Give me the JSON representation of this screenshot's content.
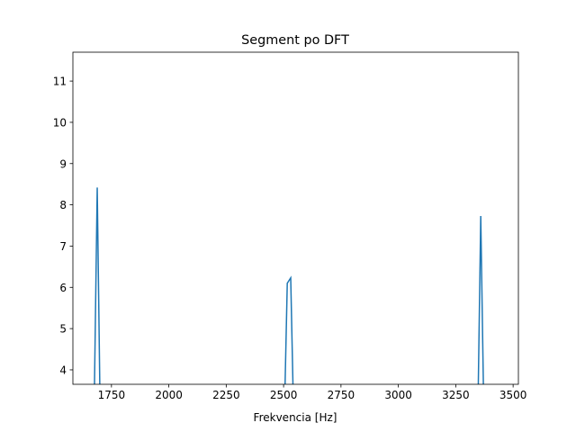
{
  "chart_data": {
    "type": "line",
    "title": "Segment po DFT",
    "x_label": "Frekvencia [Hz]",
    "x": [
      1672,
      1688,
      1703,
      2500,
      2516,
      2531,
      2547,
      3344,
      3359,
      3375
    ],
    "series": [
      {
        "color": "#1f77b4",
        "values": [
          2,
          8.42,
          2,
          2,
          6.1,
          6.23,
          2,
          2,
          7.73,
          2
        ]
      }
    ],
    "xlim": [
      1582,
      3523
    ],
    "xticks": [
      1750,
      2000,
      2250,
      2500,
      2750,
      3000,
      3250,
      3500
    ],
    "ylim": [
      3.65,
      11.7
    ],
    "yticks": [
      4,
      5,
      6,
      7,
      8,
      9,
      10,
      11
    ]
  }
}
